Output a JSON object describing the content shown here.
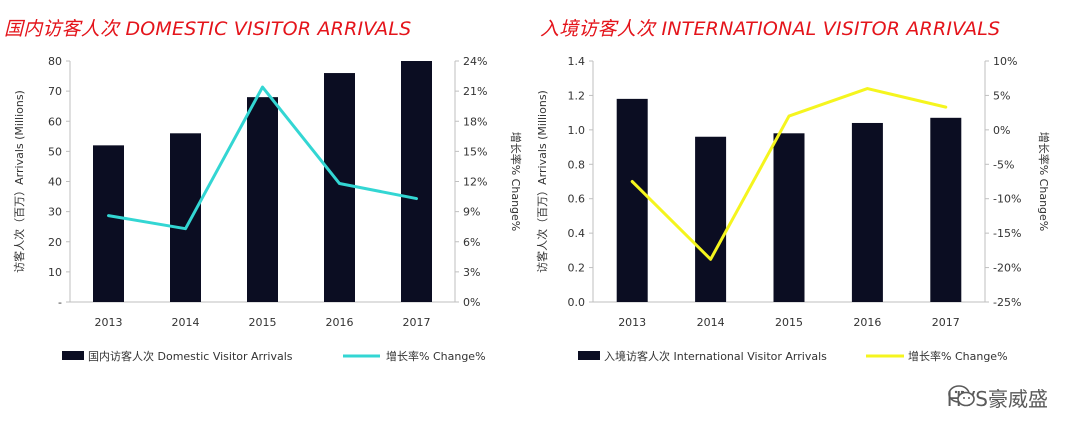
{
  "chart_data": [
    {
      "type": "bar",
      "title": "国内访客人次 DOMESTIC VISITOR ARRIVALS",
      "categories": [
        "2013",
        "2014",
        "2015",
        "2016",
        "2017"
      ],
      "series": [
        {
          "name": "国内访客人次 Domestic Visitor Arrivals",
          "type": "bar",
          "axis": "left",
          "values": [
            52,
            56,
            68,
            76,
            80
          ]
        },
        {
          "name": "增长率% Change%",
          "type": "line",
          "axis": "right",
          "values": [
            8.6,
            7.3,
            21.4,
            11.8,
            10.3
          ]
        }
      ],
      "ylabel": "访客人次（百万）Arrivals (Millions)",
      "y2label": "增长率% Change%",
      "ylim": [
        0,
        80
      ],
      "y2lim": [
        0,
        24
      ],
      "yticks": [
        "-",
        "10",
        "20",
        "30",
        "40",
        "50",
        "60",
        "70",
        "80"
      ],
      "y2ticks": [
        "0%",
        "3%",
        "6%",
        "9%",
        "12%",
        "15%",
        "18%",
        "21%",
        "24%"
      ],
      "legend": "bottom",
      "colors": {
        "bar": "#0b0d22",
        "line": "#33d6d3"
      }
    },
    {
      "type": "bar",
      "title": "入境访客人次 INTERNATIONAL VISITOR ARRIVALS",
      "categories": [
        "2013",
        "2014",
        "2015",
        "2016",
        "2017"
      ],
      "series": [
        {
          "name": "入境访客人次 International Visitor Arrivals",
          "type": "bar",
          "axis": "left",
          "values": [
            1.18,
            0.96,
            0.98,
            1.04,
            1.07
          ]
        },
        {
          "name": "增长率% Change%",
          "type": "line",
          "axis": "right",
          "values": [
            -7.5,
            -18.8,
            2.0,
            6.0,
            3.3
          ]
        }
      ],
      "ylabel": "访客人次（百万）Arrivals (Millions)",
      "y2label": "增长率% Change%",
      "ylim": [
        0,
        1.4
      ],
      "y2lim": [
        -25,
        10
      ],
      "yticks": [
        "0.0",
        "0.2",
        "0.4",
        "0.6",
        "0.8",
        "1.0",
        "1.2",
        "1.4"
      ],
      "y2ticks": [
        "-25%",
        "-20%",
        "-15%",
        "-10%",
        "-5%",
        "0%",
        "5%",
        "10%"
      ],
      "legend": "bottom",
      "colors": {
        "bar": "#0b0d22",
        "line": "#f5f51e"
      }
    }
  ],
  "watermark": {
    "text": "HVS豪威盛",
    "icon": "wechat-icon"
  }
}
